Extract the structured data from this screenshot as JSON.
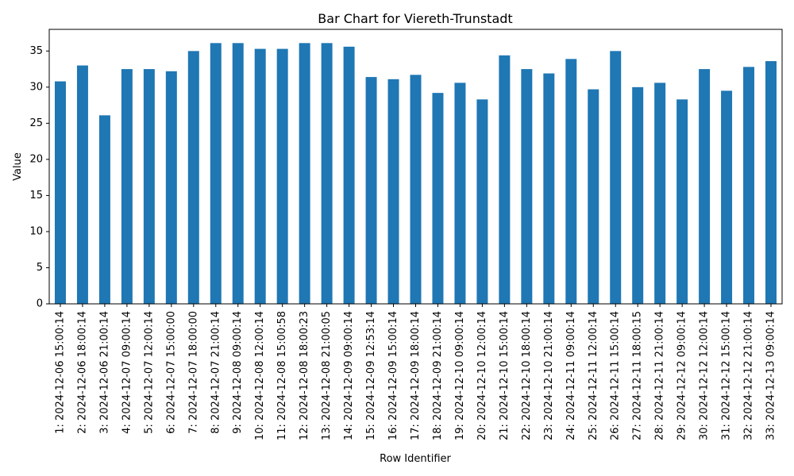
{
  "chart_data": {
    "type": "bar",
    "title": "Bar Chart for Viereth-Trunstadt",
    "xlabel": "Row Identifier",
    "ylabel": "Value",
    "ylim": [
      0,
      38
    ],
    "yticks": [
      0,
      5,
      10,
      15,
      20,
      25,
      30,
      35
    ],
    "grid": false,
    "bar_color": "#1f77b4",
    "categories": [
      "1: 2024-12-06 15:00:14",
      "2: 2024-12-06 18:00:14",
      "3: 2024-12-06 21:00:14",
      "4: 2024-12-07 09:00:14",
      "5: 2024-12-07 12:00:14",
      "6: 2024-12-07 15:00:00",
      "7: 2024-12-07 18:00:00",
      "8: 2024-12-07 21:00:14",
      "9: 2024-12-08 09:00:14",
      "10: 2024-12-08 12:00:14",
      "11: 2024-12-08 15:00:58",
      "12: 2024-12-08 18:00:23",
      "13: 2024-12-08 21:00:05",
      "14: 2024-12-09 09:00:14",
      "15: 2024-12-09 12:53:14",
      "16: 2024-12-09 15:00:14",
      "17: 2024-12-09 18:00:14",
      "18: 2024-12-09 21:00:14",
      "19: 2024-12-10 09:00:14",
      "20: 2024-12-10 12:00:14",
      "21: 2024-12-10 15:00:14",
      "22: 2024-12-10 18:00:14",
      "23: 2024-12-10 21:00:14",
      "24: 2024-12-11 09:00:14",
      "25: 2024-12-11 12:00:14",
      "26: 2024-12-11 15:00:14",
      "27: 2024-12-11 18:00:15",
      "28: 2024-12-11 21:00:14",
      "29: 2024-12-12 09:00:14",
      "30: 2024-12-12 12:00:14",
      "31: 2024-12-12 15:00:14",
      "32: 2024-12-12 21:00:14",
      "33: 2024-12-13 09:00:14"
    ],
    "values": [
      30.8,
      33.0,
      26.1,
      32.5,
      32.5,
      32.2,
      35.0,
      36.1,
      36.1,
      35.3,
      35.3,
      36.1,
      36.1,
      35.6,
      31.4,
      31.1,
      31.7,
      29.2,
      30.6,
      28.3,
      34.4,
      32.5,
      31.9,
      33.9,
      29.7,
      35.0,
      30.0,
      30.6,
      28.3,
      32.5,
      29.5,
      32.8,
      33.6
    ]
  }
}
